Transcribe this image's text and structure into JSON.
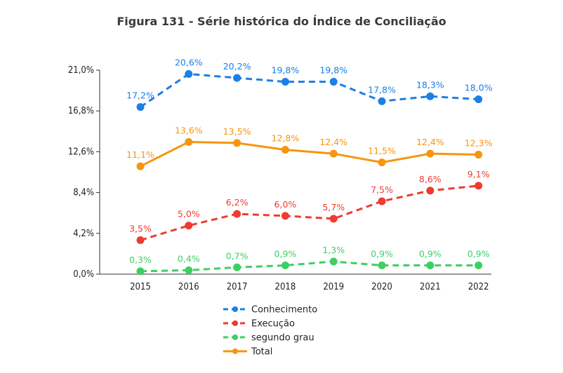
{
  "chart_data": {
    "type": "line",
    "title": "Figura 131 - Série histórica do Índice de Conciliação",
    "categories": [
      "2015",
      "2016",
      "2017",
      "2018",
      "2019",
      "2020",
      "2021",
      "2022"
    ],
    "y_ticks": [
      "0,0%",
      "4,2%",
      "8,4%",
      "12,6%",
      "16,8%",
      "21,0%"
    ],
    "ylim": [
      0,
      21.0
    ],
    "grid": false,
    "legend_position": "bottom-center",
    "series": [
      {
        "name": "Conhecimento",
        "color": "#1a7fe6",
        "style": "dashed",
        "values": [
          17.2,
          20.6,
          20.2,
          19.8,
          19.8,
          17.8,
          18.3,
          18.0
        ],
        "labels": [
          "17,2%",
          "20,6%",
          "20,2%",
          "19,8%",
          "19,8%",
          "17,8%",
          "18,3%",
          "18,0%"
        ]
      },
      {
        "name": "Execução",
        "color": "#ef3b30",
        "style": "dashed",
        "values": [
          3.5,
          5.0,
          6.2,
          6.0,
          5.7,
          7.5,
          8.6,
          9.1
        ],
        "labels": [
          "3,5%",
          "5,0%",
          "6,2%",
          "6,0%",
          "5,7%",
          "7,5%",
          "8,6%",
          "9,1%"
        ]
      },
      {
        "name": "segundo grau",
        "color": "#3ecf63",
        "style": "dashed",
        "values": [
          0.3,
          0.4,
          0.7,
          0.9,
          1.3,
          0.9,
          0.9,
          0.9
        ],
        "labels": [
          "0,3%",
          "0,4%",
          "0,7%",
          "0,9%",
          "1,3%",
          "0,9%",
          "0,9%",
          "0,9%"
        ]
      },
      {
        "name": "Total",
        "color": "#f5960f",
        "style": "solid",
        "values": [
          11.1,
          13.6,
          13.5,
          12.8,
          12.4,
          11.5,
          12.4,
          12.3
        ],
        "labels": [
          "11,1%",
          "13,6%",
          "13,5%",
          "12,8%",
          "12,4%",
          "11,5%",
          "12,4%",
          "12,3%"
        ]
      }
    ]
  }
}
